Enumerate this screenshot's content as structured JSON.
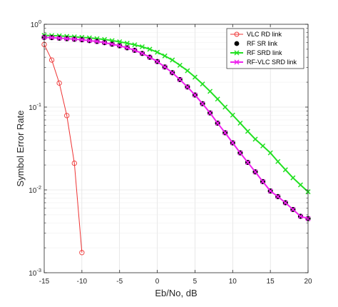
{
  "chart_data": {
    "type": "line",
    "title": "",
    "xlabel": "Eb/No, dB",
    "ylabel": "Symbol Error Rate",
    "xlim": [
      -15,
      20
    ],
    "ylim": [
      0.001,
      1
    ],
    "yscale": "log",
    "grid": true,
    "legend_position": "top-right",
    "x_ticks": [
      -15,
      -10,
      -5,
      0,
      5,
      10,
      15,
      20
    ],
    "x_tick_labels": [
      "-15",
      "-10",
      "-5",
      "0",
      "5",
      "10",
      "15",
      "20"
    ],
    "y_ticks": [
      0.001,
      0.01,
      0.1,
      1
    ],
    "y_tick_labels": [
      {
        "base": "10",
        "exp": "-3"
      },
      {
        "base": "10",
        "exp": "-2"
      },
      {
        "base": "10",
        "exp": "-1"
      },
      {
        "base": "10",
        "exp": "0"
      }
    ],
    "series": [
      {
        "name": "VLC RD link",
        "color": "#ee3333",
        "marker": "circle-open",
        "line_width": 1,
        "x": [
          -15,
          -14,
          -13,
          -12,
          -11,
          -10
        ],
        "y": [
          0.57,
          0.37,
          0.195,
          0.079,
          0.021,
          0.00175
        ]
      },
      {
        "name": "RF SR link",
        "color": "#000000",
        "marker": "circle-filled",
        "line_width": 0,
        "x": [
          -15,
          -14,
          -13,
          -12,
          -11,
          -10,
          -9,
          -8,
          -7,
          -6,
          -5,
          -4,
          -3,
          -2,
          -1,
          0,
          1,
          2,
          3,
          4,
          5,
          6,
          7,
          8,
          9,
          10,
          11,
          12,
          13,
          14,
          15,
          16,
          17,
          18,
          19,
          20
        ],
        "y": [
          0.695,
          0.69,
          0.68,
          0.67,
          0.66,
          0.65,
          0.635,
          0.62,
          0.6,
          0.575,
          0.55,
          0.52,
          0.485,
          0.445,
          0.4,
          0.355,
          0.305,
          0.26,
          0.215,
          0.175,
          0.14,
          0.11,
          0.085,
          0.064,
          0.049,
          0.037,
          0.028,
          0.0215,
          0.0165,
          0.0126,
          0.0097,
          0.0083,
          0.007,
          0.0058,
          0.0048,
          0.0045
        ]
      },
      {
        "name": "RF SRD link",
        "color": "#22e022",
        "marker": "x",
        "line_width": 2,
        "x": [
          -15,
          -14,
          -13,
          -12,
          -11,
          -10,
          -9,
          -8,
          -7,
          -6,
          -5,
          -4,
          -3,
          -2,
          -1,
          0,
          1,
          2,
          3,
          4,
          5,
          6,
          7,
          8,
          9,
          10,
          11,
          12,
          13,
          14,
          15,
          16,
          17,
          18,
          19,
          20
        ],
        "y": [
          0.735,
          0.73,
          0.725,
          0.715,
          0.705,
          0.695,
          0.685,
          0.67,
          0.655,
          0.635,
          0.615,
          0.59,
          0.565,
          0.535,
          0.5,
          0.46,
          0.415,
          0.37,
          0.32,
          0.275,
          0.23,
          0.19,
          0.155,
          0.125,
          0.1,
          0.08,
          0.064,
          0.051,
          0.041,
          0.034,
          0.028,
          0.022,
          0.0175,
          0.014,
          0.0115,
          0.0095
        ]
      },
      {
        "name": "RF-VLC SRD link",
        "color": "#ee22ee",
        "marker": "x",
        "line_width": 2,
        "x": [
          -15,
          -14,
          -13,
          -12,
          -11,
          -10,
          -9,
          -8,
          -7,
          -6,
          -5,
          -4,
          -3,
          -2,
          -1,
          0,
          1,
          2,
          3,
          4,
          5,
          6,
          7,
          8,
          9,
          10,
          11,
          12,
          13,
          14,
          15,
          16,
          17,
          18,
          19,
          20
        ],
        "y": [
          0.695,
          0.69,
          0.68,
          0.67,
          0.66,
          0.65,
          0.635,
          0.62,
          0.6,
          0.575,
          0.55,
          0.52,
          0.485,
          0.445,
          0.4,
          0.355,
          0.305,
          0.26,
          0.215,
          0.175,
          0.14,
          0.11,
          0.085,
          0.064,
          0.049,
          0.037,
          0.028,
          0.0215,
          0.0165,
          0.0126,
          0.0097,
          0.0083,
          0.007,
          0.0058,
          0.0048,
          0.0045
        ]
      }
    ]
  }
}
